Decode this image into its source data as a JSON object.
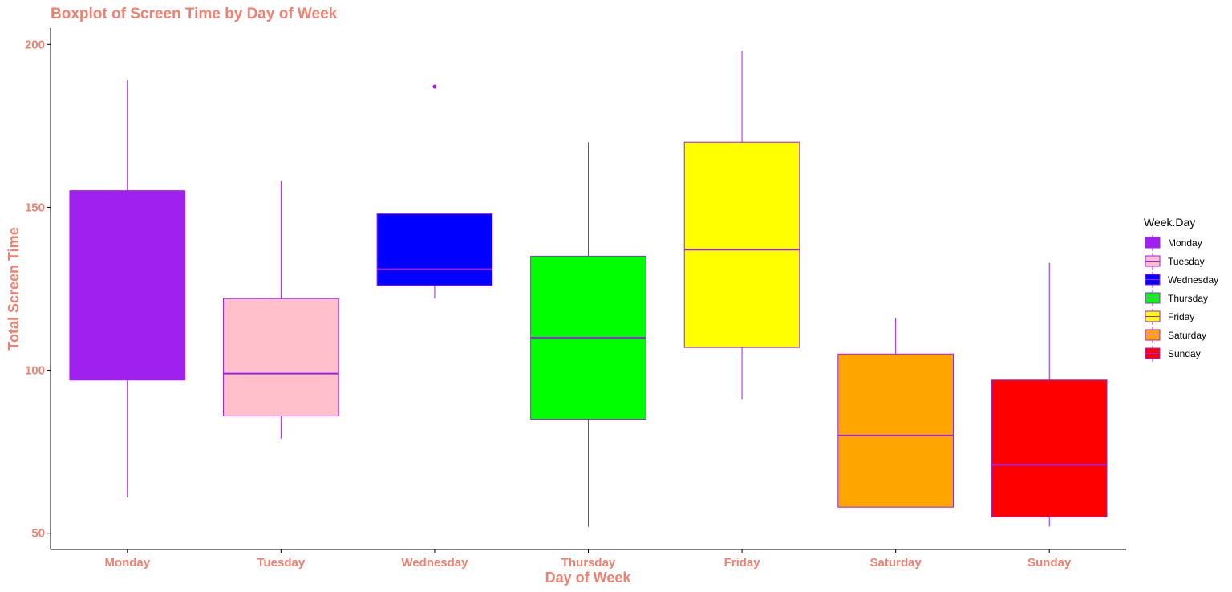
{
  "chart_data": {
    "type": "boxplot",
    "title": "Boxplot of Screen Time by Day of Week",
    "xlabel": "Day of Week",
    "ylabel": "Total Screen Time",
    "ylim": [
      45,
      205
    ],
    "yticks": [
      50,
      100,
      150,
      200
    ],
    "grid": false,
    "legend": {
      "title": "Week.Day",
      "position": "right"
    },
    "colors": {
      "text": "#f08070",
      "box_outline": "#a020f0",
      "axis": "#000000"
    },
    "categories": [
      "Monday",
      "Tuesday",
      "Wednesday",
      "Thursday",
      "Friday",
      "Saturday",
      "Sunday"
    ],
    "series": [
      {
        "name": "Monday",
        "fill": "#a020f0",
        "min": 61,
        "q1": 97,
        "median": 155,
        "q3": 155,
        "max": 189,
        "outliers": []
      },
      {
        "name": "Tuesday",
        "fill": "#ffc0cb",
        "min": 79,
        "q1": 86,
        "median": 99,
        "q3": 122,
        "max": 158,
        "outliers": []
      },
      {
        "name": "Wednesday",
        "fill": "#0000ff",
        "min": 122,
        "q1": 126,
        "median": 131,
        "q3": 148,
        "max": 148,
        "outliers": [
          187
        ]
      },
      {
        "name": "Thursday",
        "fill": "#00ff00",
        "min": 52,
        "q1": 85,
        "median": 110,
        "q3": 135,
        "max": 170,
        "outliers": []
      },
      {
        "name": "Friday",
        "fill": "#ffff00",
        "min": 91,
        "q1": 107,
        "median": 137,
        "q3": 170,
        "max": 198,
        "outliers": []
      },
      {
        "name": "Saturday",
        "fill": "#ffa500",
        "min": 58,
        "q1": 58,
        "median": 80,
        "q3": 105,
        "max": 116,
        "outliers": []
      },
      {
        "name": "Sunday",
        "fill": "#ff0000",
        "min": 52,
        "q1": 55,
        "median": 71,
        "q3": 97,
        "max": 133,
        "outliers": []
      }
    ]
  }
}
